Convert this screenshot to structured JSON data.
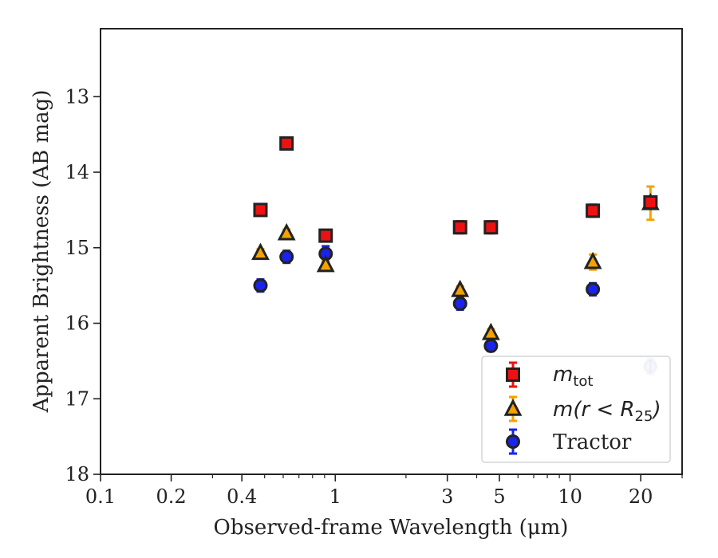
{
  "chart_data": {
    "type": "scatter",
    "title": "",
    "xlabel": "Observed-frame Wavelength (μm)",
    "ylabel": "Apparent Brightness (AB mag)",
    "xscale": "log",
    "xlim": [
      0.1,
      30
    ],
    "ylim": [
      18,
      12.1
    ],
    "y_inverted": true,
    "x_ticks": [
      {
        "value": 0.1,
        "label": "0.1"
      },
      {
        "value": 0.2,
        "label": "0.2"
      },
      {
        "value": 0.4,
        "label": "0.4"
      },
      {
        "value": 1,
        "label": "1"
      },
      {
        "value": 3,
        "label": "3"
      },
      {
        "value": 5,
        "label": "5"
      },
      {
        "value": 10,
        "label": "10"
      },
      {
        "value": 20,
        "label": "20"
      }
    ],
    "y_ticks": [
      {
        "value": 13,
        "label": "13"
      },
      {
        "value": 14,
        "label": "14"
      },
      {
        "value": 15,
        "label": "15"
      },
      {
        "value": 16,
        "label": "16"
      },
      {
        "value": 17,
        "label": "17"
      },
      {
        "value": 18,
        "label": "18"
      }
    ],
    "legend_position": "lower-right",
    "grid": false,
    "series": [
      {
        "name": "m_tot",
        "label_main": "m",
        "label_sub": "tot",
        "marker": "square",
        "face_color": "#ee1111",
        "error_color": "#ee1111",
        "points": [
          {
            "x": 0.48,
            "y": 14.5,
            "err": 0.07
          },
          {
            "x": 0.62,
            "y": 13.62,
            "err": 0.07
          },
          {
            "x": 0.91,
            "y": 14.84,
            "err": 0.07
          },
          {
            "x": 3.4,
            "y": 14.73,
            "err": 0.08
          },
          {
            "x": 4.6,
            "y": 14.73,
            "err": 0.08
          },
          {
            "x": 12.5,
            "y": 14.51,
            "err": 0.08
          },
          {
            "x": 22.0,
            "y": 14.4,
            "err": 0.07
          }
        ]
      },
      {
        "name": "m(r<R_25)",
        "label_main": "m(r < R",
        "label_sub": "25",
        "label_tail": ")",
        "marker": "triangle",
        "face_color": "#f5a200",
        "error_color": "#f5a200",
        "points": [
          {
            "x": 0.48,
            "y": 15.07,
            "err": 0.05
          },
          {
            "x": 0.62,
            "y": 14.81,
            "err": 0.05
          },
          {
            "x": 0.91,
            "y": 15.23,
            "err": 0.05
          },
          {
            "x": 3.4,
            "y": 15.56,
            "err": 0.05
          },
          {
            "x": 4.6,
            "y": 16.13,
            "err": 0.05
          },
          {
            "x": 12.5,
            "y": 15.19,
            "err": 0.1
          },
          {
            "x": 22.0,
            "y": 14.41,
            "err": 0.22
          }
        ]
      },
      {
        "name": "Tractor",
        "marker": "circle",
        "face_color": "#1a22ee",
        "error_color": "#1a22ee",
        "points": [
          {
            "x": 0.48,
            "y": 15.5,
            "err": 0.08
          },
          {
            "x": 0.62,
            "y": 15.12,
            "err": 0.08
          },
          {
            "x": 0.91,
            "y": 15.08,
            "err": 0.1
          },
          {
            "x": 3.4,
            "y": 15.74,
            "err": 0.08
          },
          {
            "x": 4.6,
            "y": 16.3,
            "err": 0.07
          },
          {
            "x": 12.5,
            "y": 15.55,
            "err": 0.08
          },
          {
            "x": 22.0,
            "y": 16.57,
            "err": 0.1
          }
        ]
      }
    ]
  }
}
